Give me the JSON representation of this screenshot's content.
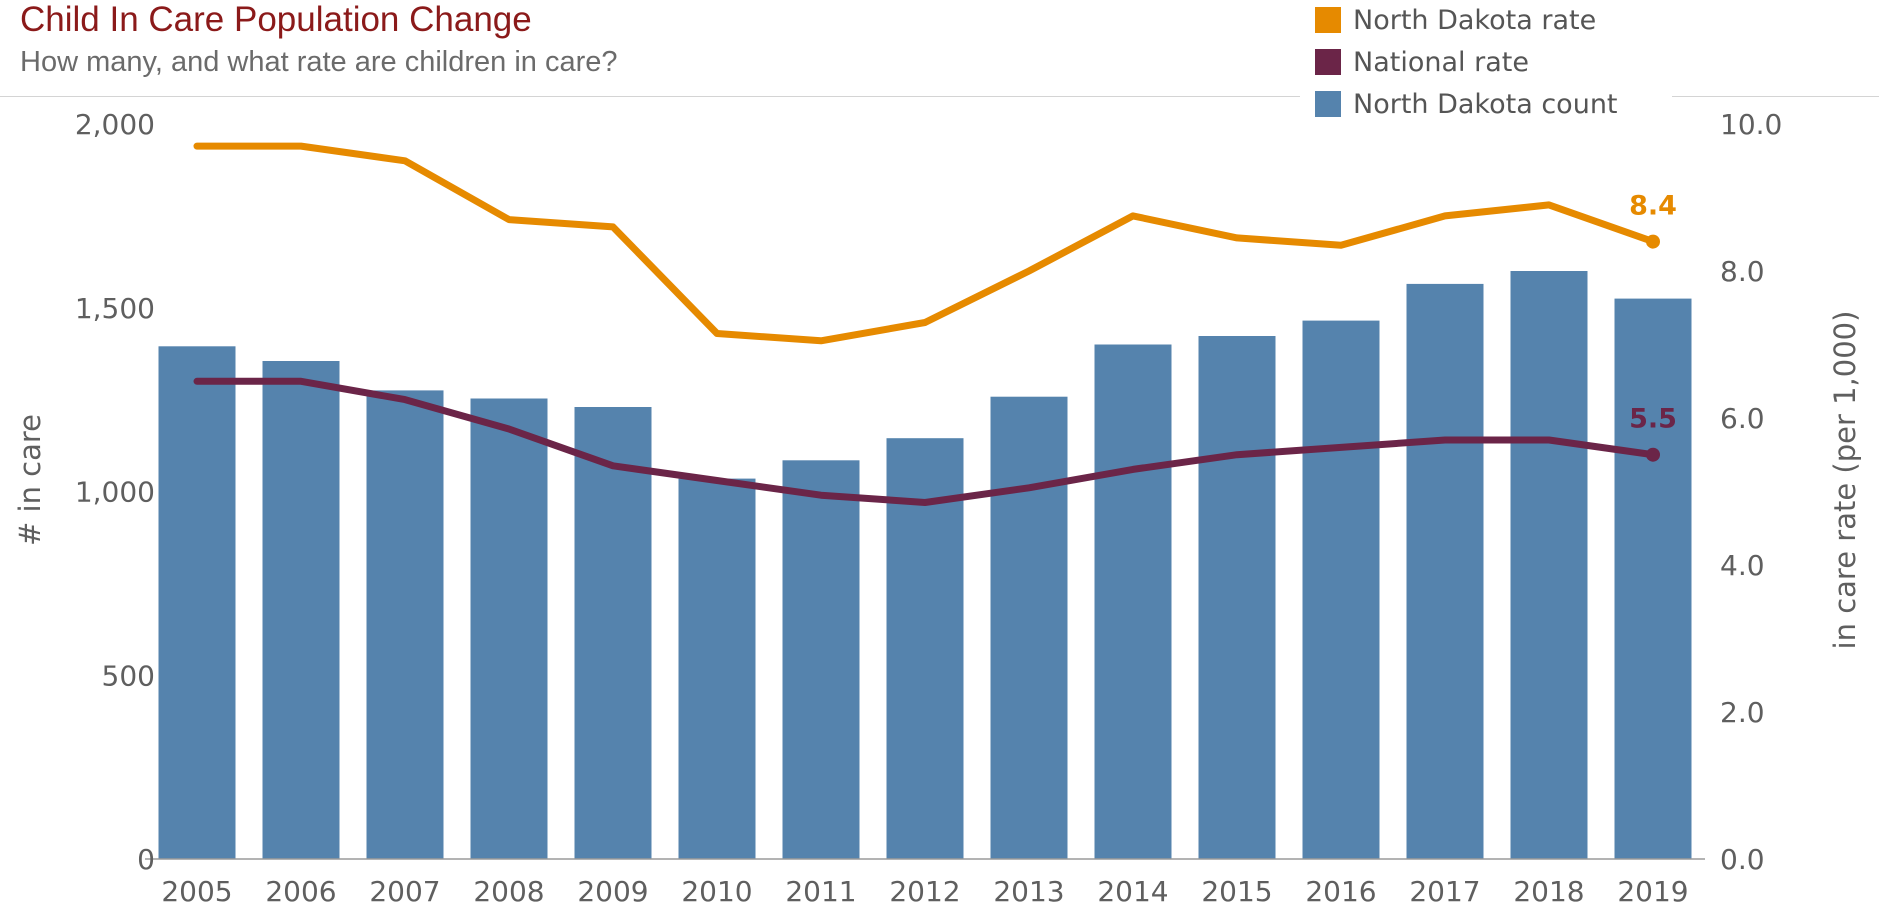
{
  "header": {
    "title": "Child In Care Population Change",
    "subtitle": "How many, and what rate are children in care?"
  },
  "legend": {
    "items": [
      {
        "label": "North Dakota rate",
        "color": "#e68a00"
      },
      {
        "label": "National rate",
        "color": "#6b2548"
      },
      {
        "label": "North Dakota count",
        "color": "#5583ad"
      }
    ]
  },
  "chart_data": {
    "type": "bar",
    "categories": [
      "2005",
      "2006",
      "2007",
      "2008",
      "2009",
      "2010",
      "2011",
      "2012",
      "2013",
      "2014",
      "2015",
      "2016",
      "2017",
      "2018",
      "2019"
    ],
    "series": [
      {
        "name": "North Dakota count",
        "type": "bar",
        "axis": "left",
        "color": "#5583ad",
        "values": [
          1395,
          1355,
          1275,
          1253,
          1230,
          1035,
          1085,
          1145,
          1258,
          1400,
          1423,
          1465,
          1565,
          1600,
          1525
        ]
      },
      {
        "name": "North Dakota rate",
        "type": "line",
        "axis": "right",
        "color": "#e68a00",
        "values": [
          9.7,
          9.7,
          9.5,
          8.7,
          8.6,
          7.15,
          7.05,
          7.3,
          8.0,
          8.75,
          8.45,
          8.35,
          8.75,
          8.9,
          8.4
        ]
      },
      {
        "name": "National rate",
        "type": "line",
        "axis": "right",
        "color": "#6b2548",
        "values": [
          6.5,
          6.5,
          6.25,
          5.85,
          5.35,
          5.15,
          4.95,
          4.85,
          5.05,
          5.3,
          5.5,
          5.6,
          5.7,
          5.7,
          5.5
        ]
      }
    ],
    "end_labels": [
      {
        "series": "North Dakota rate",
        "text": "8.4",
        "color": "#e68a00"
      },
      {
        "series": "National rate",
        "text": "5.5",
        "color": "#6b2548"
      }
    ],
    "ylabel": "# in care",
    "ylim": [
      0,
      2000
    ],
    "yticks": [
      "0",
      "500",
      "1,000",
      "1,500",
      "2,000"
    ],
    "ytick_values": [
      0,
      500,
      1000,
      1500,
      2000
    ],
    "y2label": "in care rate (per 1,000)",
    "y2lim": [
      0,
      10
    ],
    "y2ticks": [
      "0.0",
      "2.0",
      "4.0",
      "6.0",
      "8.0",
      "10.0"
    ],
    "y2tick_values": [
      0,
      2,
      4,
      6,
      8,
      10
    ],
    "grid": false,
    "legend_position": "top-right"
  }
}
